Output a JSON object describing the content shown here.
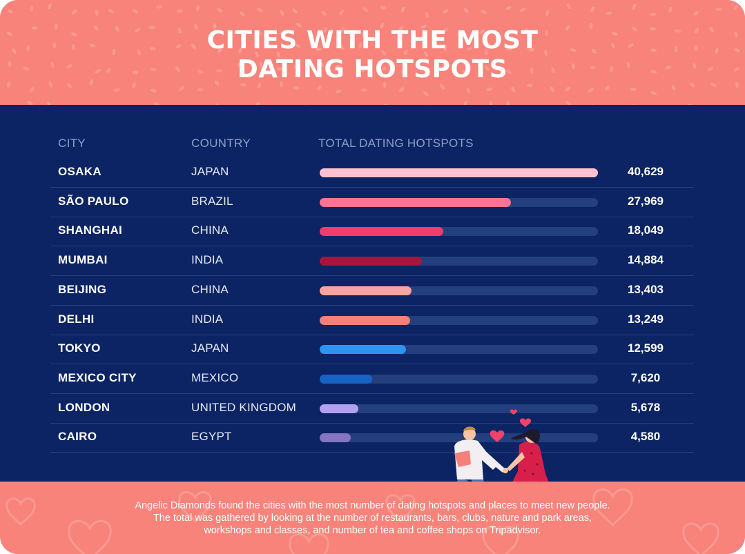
{
  "title_lines": [
    "CITIES WITH THE MOST",
    "DATING HOTSPOTS"
  ],
  "columns": {
    "city": "CITY",
    "country": "COUNTRY",
    "total": "TOTAL DATING HOTSPOTS"
  },
  "colors": {
    "background_pink": "#f7837a",
    "panel_navy": "#0c2463",
    "track": "#233f7d",
    "bars": [
      "#ffc1cf",
      "#f77591",
      "#f03d6b",
      "#a5163e",
      "#f7a4a0",
      "#f58079",
      "#2f93f2",
      "#1763c4",
      "#b2a1f0",
      "#8474c2"
    ]
  },
  "chart_data": {
    "type": "bar",
    "orientation": "horizontal",
    "title": "CITIES WITH THE MOST DATING HOTSPOTS",
    "categories": [
      "OSAKA",
      "SÃO PAULO",
      "SHANGHAI",
      "MUMBAI",
      "BEIJING",
      "DELHI",
      "TOKYO",
      "MEXICO CITY",
      "LONDON",
      "CAIRO"
    ],
    "countries": [
      "JAPAN",
      "BRAZIL",
      "CHINA",
      "INDIA",
      "CHINA",
      "INDIA",
      "JAPAN",
      "MEXICO",
      "UNITED KINGDOM",
      "EGYPT"
    ],
    "values": [
      40629,
      27969,
      18049,
      14884,
      13403,
      13249,
      12599,
      7620,
      5678,
      4580
    ],
    "value_labels": [
      "40,629",
      "27,969",
      "18,049",
      "14,884",
      "13,403",
      "13,249",
      "12,599",
      "7,620",
      "5,678",
      "4,580"
    ],
    "xlim": [
      0,
      40629
    ],
    "grid": false
  },
  "footnote_lines": [
    "Angelic Diamonds found the cities with the most number of dating hotspots and places to meet new people.",
    "The total was gathered by looking at the number of restaurants, bars, clubs, nature and park areas,",
    "workshops and classes, and number of tea and coffee shops on Tripadvisor."
  ],
  "illustration": "dancing-couple-with-hearts"
}
